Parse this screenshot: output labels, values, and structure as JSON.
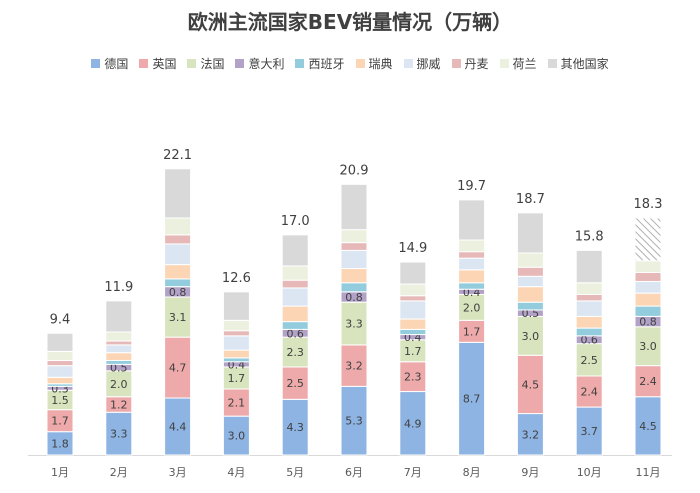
{
  "chart_data": {
    "type": "bar",
    "stacked": true,
    "title": "欧洲主流国家BEV销量情况（万辆）",
    "xlabel": "",
    "ylabel": "",
    "grid": false,
    "legend_position": "top",
    "categories": [
      "1月",
      "2月",
      "3月",
      "4月",
      "5月",
      "6月",
      "7月",
      "8月",
      "9月",
      "10月",
      "11月"
    ],
    "totals": [
      "9.4",
      "11.9",
      "22.1",
      "12.6",
      "17.0",
      "20.9",
      "14.9",
      "19.7",
      "18.7",
      "15.8",
      "18.3"
    ],
    "series": [
      {
        "name": "德国",
        "color": "#8eb4e3",
        "values": [
          1.8,
          3.3,
          4.4,
          3.0,
          4.3,
          5.3,
          4.9,
          8.7,
          3.2,
          3.7,
          4.5
        ],
        "labels": [
          "1.8",
          "3.3",
          "4.4",
          "3.0",
          "4.3",
          "5.3",
          "4.9",
          "8.7",
          "3.2",
          "3.7",
          "4.5"
        ]
      },
      {
        "name": "英国",
        "color": "#eeaaaa",
        "values": [
          1.7,
          1.2,
          4.7,
          2.1,
          2.5,
          3.2,
          2.3,
          1.7,
          4.5,
          2.4,
          2.4
        ],
        "labels": [
          "1.7",
          "1.2",
          "4.7",
          "2.1",
          "2.5",
          "3.2",
          "2.3",
          "1.7",
          "4.5",
          "2.4",
          "2.4"
        ]
      },
      {
        "name": "法国",
        "color": "#d7e4bd",
        "values": [
          1.5,
          2.0,
          3.1,
          1.7,
          2.3,
          3.3,
          1.7,
          2.0,
          3.0,
          2.5,
          3.0
        ],
        "labels": [
          "1.5",
          "2.0",
          "3.1",
          "1.7",
          "2.3",
          "3.3",
          "1.7",
          "2.0",
          "3.0",
          "2.5",
          "3.0"
        ]
      },
      {
        "name": "意大利",
        "color": "#b3a2c7",
        "values": [
          0.3,
          0.5,
          0.8,
          0.4,
          0.6,
          0.8,
          0.4,
          0.4,
          0.5,
          0.6,
          0.8
        ],
        "labels": [
          "0.3",
          "0.5",
          "0.8",
          "0.4",
          "0.6",
          "0.8",
          "0.4",
          "0.4",
          "0.5",
          "0.6",
          "0.8"
        ]
      },
      {
        "name": "西班牙",
        "color": "#93cddd",
        "values": [
          0.2,
          0.3,
          0.6,
          0.3,
          0.6,
          0.7,
          0.4,
          0.5,
          0.6,
          0.6,
          0.8
        ]
      },
      {
        "name": "瑞典",
        "color": "#fcd5b5",
        "values": [
          0.5,
          0.6,
          1.1,
          0.6,
          1.2,
          1.1,
          0.8,
          1.0,
          1.2,
          0.9,
          1.0
        ]
      },
      {
        "name": "挪威",
        "color": "#dce6f2",
        "values": [
          0.9,
          0.6,
          1.6,
          1.1,
          1.4,
          1.4,
          1.4,
          0.9,
          0.8,
          1.2,
          0.9
        ]
      },
      {
        "name": "丹麦",
        "color": "#e6b9b8",
        "values": [
          0.4,
          0.3,
          0.7,
          0.4,
          0.6,
          0.6,
          0.4,
          0.5,
          0.7,
          0.5,
          0.7
        ]
      },
      {
        "name": "荷兰",
        "color": "#ebf1de",
        "values": [
          0.7,
          0.7,
          1.3,
          0.8,
          1.1,
          1.0,
          0.9,
          0.9,
          1.1,
          0.9,
          0.9
        ]
      },
      {
        "name": "其他国家",
        "color": "#d9d9d9",
        "values": [
          1.4,
          2.4,
          3.8,
          2.2,
          2.4,
          3.5,
          1.7,
          3.1,
          3.1,
          2.5,
          3.3
        ],
        "hatched_last": true
      }
    ],
    "ylim": [
      0,
      24
    ]
  }
}
